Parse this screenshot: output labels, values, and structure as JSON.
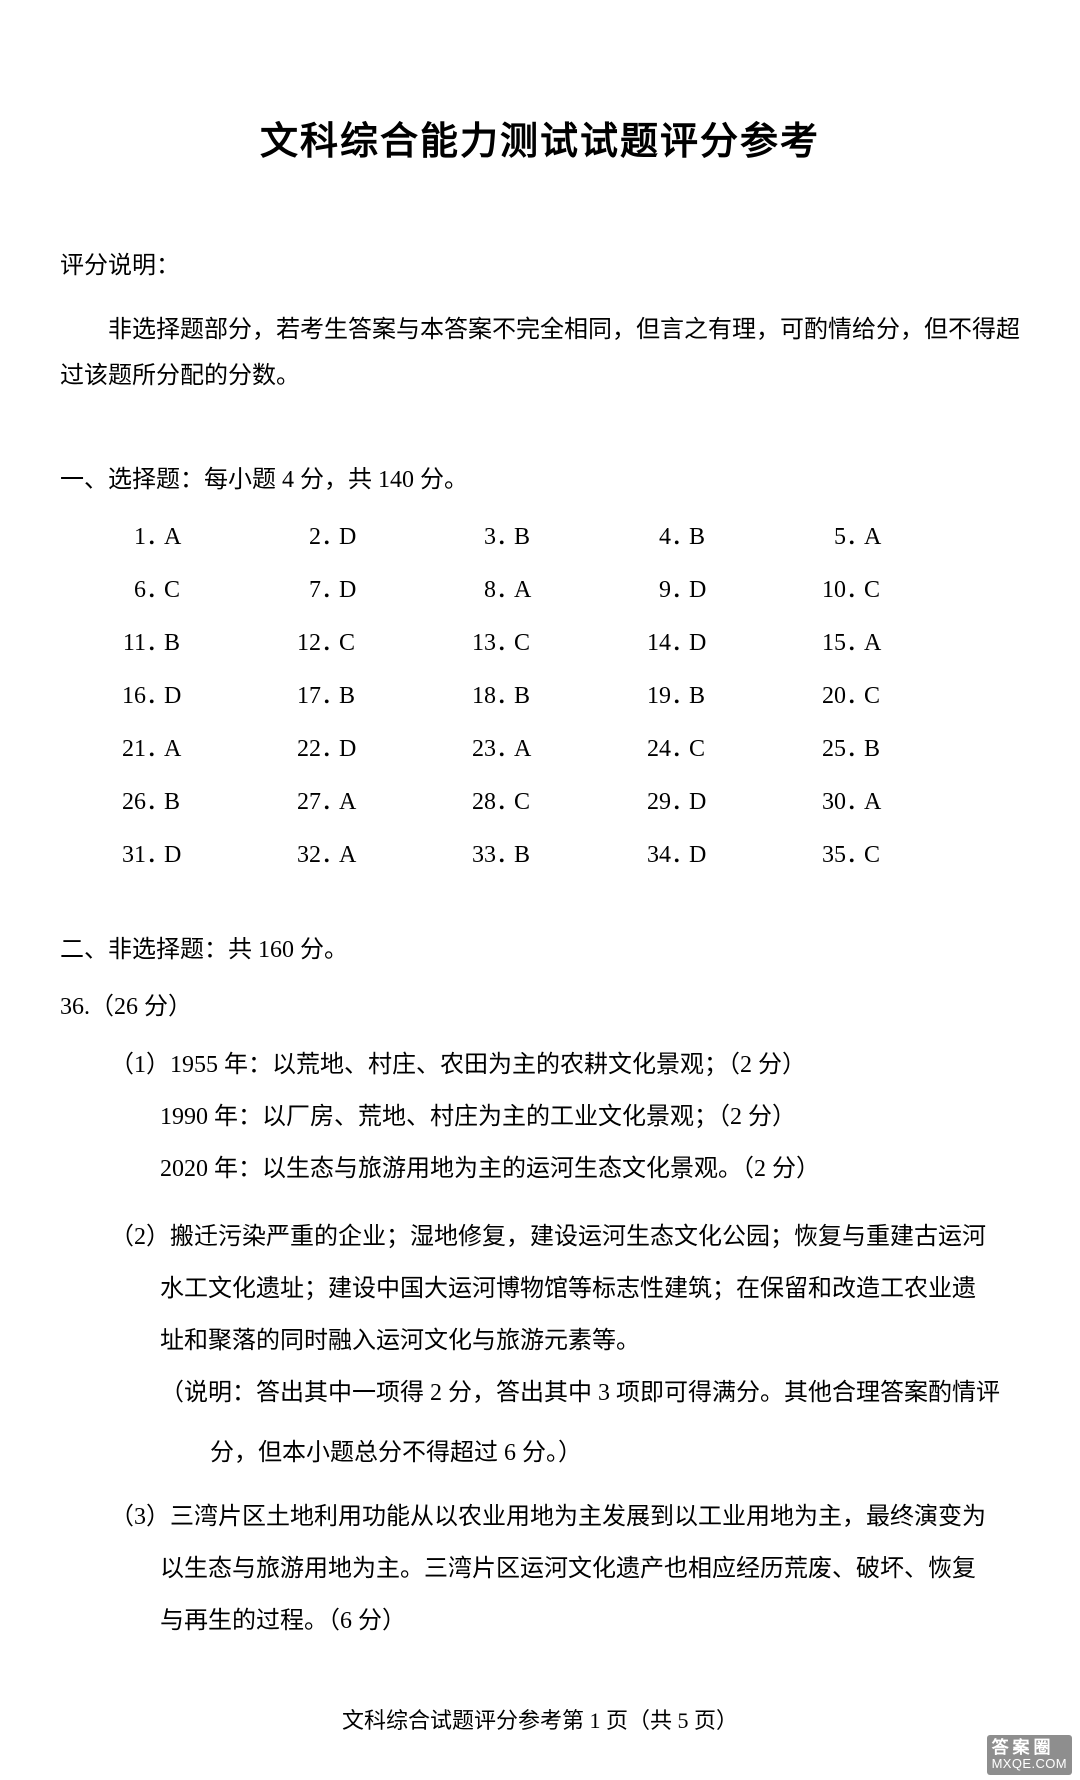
{
  "title": "文科综合能力测试试题评分参考",
  "scoring_label": "评分说明：",
  "scoring_text": "非选择题部分，若考生答案与本答案不完全相同，但言之有理，可酌情给分，但不得超过该题所分配的分数。",
  "section1": {
    "header": "一、选择题：每小题 4 分，共 140 分。",
    "answers": [
      [
        {
          "n": "1",
          "a": "A"
        },
        {
          "n": "2",
          "a": "D"
        },
        {
          "n": "3",
          "a": "B"
        },
        {
          "n": "4",
          "a": "B"
        },
        {
          "n": "5",
          "a": "A"
        }
      ],
      [
        {
          "n": "6",
          "a": "C"
        },
        {
          "n": "7",
          "a": "D"
        },
        {
          "n": "8",
          "a": "A"
        },
        {
          "n": "9",
          "a": "D"
        },
        {
          "n": "10",
          "a": "C"
        }
      ],
      [
        {
          "n": "11",
          "a": "B"
        },
        {
          "n": "12",
          "a": "C"
        },
        {
          "n": "13",
          "a": "C"
        },
        {
          "n": "14",
          "a": "D"
        },
        {
          "n": "15",
          "a": "A"
        }
      ],
      [
        {
          "n": "16",
          "a": "D"
        },
        {
          "n": "17",
          "a": "B"
        },
        {
          "n": "18",
          "a": "B"
        },
        {
          "n": "19",
          "a": "B"
        },
        {
          "n": "20",
          "a": "C"
        }
      ],
      [
        {
          "n": "21",
          "a": "A"
        },
        {
          "n": "22",
          "a": "D"
        },
        {
          "n": "23",
          "a": "A"
        },
        {
          "n": "24",
          "a": "C"
        },
        {
          "n": "25",
          "a": "B"
        }
      ],
      [
        {
          "n": "26",
          "a": "B"
        },
        {
          "n": "27",
          "a": "A"
        },
        {
          "n": "28",
          "a": "C"
        },
        {
          "n": "29",
          "a": "D"
        },
        {
          "n": "30",
          "a": "A"
        }
      ],
      [
        {
          "n": "31",
          "a": "D"
        },
        {
          "n": "32",
          "a": "A"
        },
        {
          "n": "33",
          "a": "B"
        },
        {
          "n": "34",
          "a": "D"
        },
        {
          "n": "35",
          "a": "C"
        }
      ]
    ]
  },
  "section2": {
    "header": "二、非选择题：共 160 分。",
    "q36_label": "36.（26 分）",
    "part1_l1": "（1）1955 年：以荒地、村庄、农田为主的农耕文化景观；（2 分）",
    "part1_l2": "1990 年：以厂房、荒地、村庄为主的工业文化景观；（2 分）",
    "part1_l3": "2020 年：以生态与旅游用地为主的运河生态文化景观。（2 分）",
    "part2_l1": "（2）搬迁污染严重的企业；湿地修复，建设运河生态文化公园；恢复与重建古运河",
    "part2_l2": "水工文化遗址；建设中国大运河博物馆等标志性建筑；在保留和改造工农业遗",
    "part2_l3": "址和聚落的同时融入运河文化与旅游元素等。",
    "part2_note1": "（说明：答出其中一项得 2 分，答出其中 3 项即可得满分。其他合理答案酌情评",
    "part2_note2": "分，但本小题总分不得超过 6 分。）",
    "part3_l1": "（3）三湾片区土地利用功能从以农业用地为主发展到以工业用地为主，最终演变为",
    "part3_l2": "以生态与旅游用地为主。三湾片区运河文化遗产也相应经历荒废、破坏、恢复",
    "part3_l3": "与再生的过程。（6 分）"
  },
  "footer": "文科综合试题评分参考第 1 页（共 5 页）",
  "watermark_top": "答案圈",
  "watermark_bot": "MXQE.COM",
  "colors": {
    "text": "#000000",
    "background": "#ffffff",
    "watermark_bg": "rgba(50,50,50,0.55)",
    "watermark_text": "#ffffff"
  },
  "typography": {
    "title_size": 38,
    "body_size": 24,
    "footer_size": 22,
    "font_family": "SimSun"
  }
}
